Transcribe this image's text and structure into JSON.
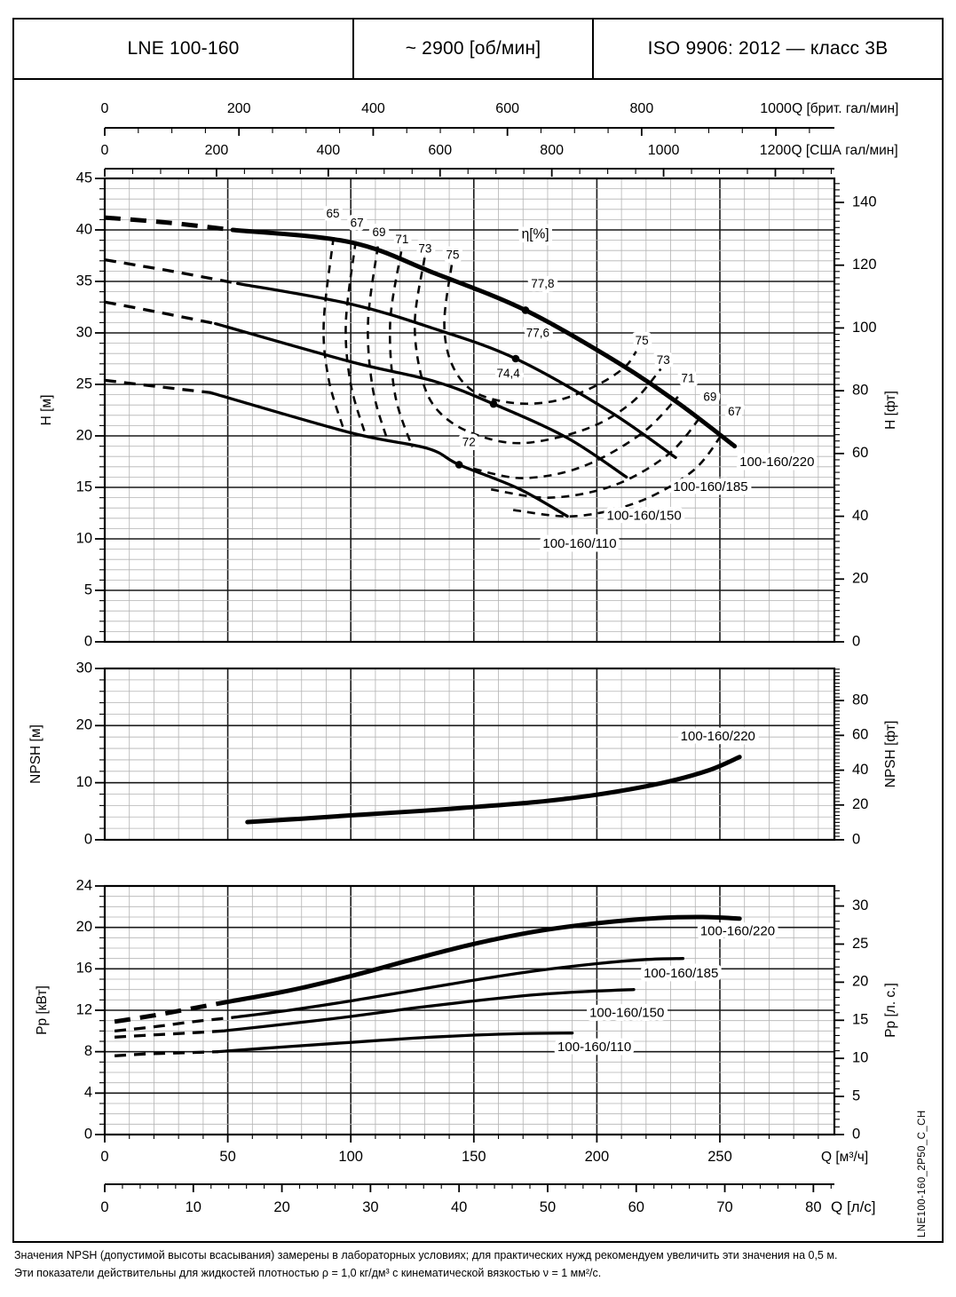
{
  "header": {
    "model": "LNE 100-160",
    "speed": "~ 2900 [об/мин]",
    "standard": "ISO 9906: 2012 — класс 3В"
  },
  "side_code": "LNE100-160_2P50_C_CH",
  "footer": {
    "line1": "Значения NPSH (допустимой высоты всасывания) замерены в лабораторных условиях; для практических нужд рекомендуем увеличить эти значения на 0,5 м.",
    "line2": "Эти показатели действительны для жидкостей плотностью ρ = 1,0 кг/дм³ с кинематической вязкостью ν = 1 мм²/с."
  },
  "chart_data": [
    {
      "id": "head",
      "type": "line",
      "title": "η[%]",
      "title_pos": [
        175,
        39.2
      ],
      "x": {
        "unit": "м³/ч",
        "min": 0,
        "max": 296,
        "minor": 10,
        "major": 50
      },
      "y_left": {
        "label": "H [м]",
        "min": 0,
        "max": 45,
        "minor": 1,
        "major": 5,
        "tick_labels": [
          0,
          5,
          10,
          15,
          20,
          25,
          30,
          35,
          40,
          45
        ]
      },
      "y_right": {
        "label": "H [фт]",
        "unit_to_left": 0.3048,
        "minor": 2,
        "tick_labels": [
          0,
          20,
          40,
          60,
          80,
          100,
          120,
          140
        ]
      },
      "axes_top": [
        {
          "label": "Q [брит. гал/мин]",
          "factor": 0.27276,
          "minor": 50,
          "ticks": [
            0,
            200,
            400,
            600,
            800,
            1000
          ]
        },
        {
          "label": "Q [США гал/мин]",
          "factor": 0.22712,
          "minor": 50,
          "ticks": [
            0,
            200,
            400,
            600,
            800,
            1000,
            1200
          ]
        }
      ],
      "series": [
        {
          "name": "100-160/220",
          "thick": true,
          "dashed_pts": [
            [
              0,
              41.2
            ],
            [
              26,
              40.7
            ],
            [
              52,
              40.0
            ]
          ],
          "solid_pts": [
            [
              52,
              40.0
            ],
            [
              100,
              38.8
            ],
            [
              134,
              35.8
            ],
            [
              171,
              32.2
            ],
            [
              208,
              27.2
            ],
            [
              233,
              23.2
            ],
            [
              256,
              19.0
            ]
          ],
          "bep": {
            "q": 171,
            "v": 32.2,
            "label": "77,8",
            "label_pos": [
              178,
              34.4
            ]
          },
          "label_pos": [
            258,
            17.4
          ]
        },
        {
          "name": "100-160/185",
          "dashed_pts": [
            [
              0,
              37.1
            ],
            [
              27,
              36.0
            ],
            [
              54,
              34.8
            ]
          ],
          "solid_pts": [
            [
              54,
              34.8
            ],
            [
              100,
              32.8
            ],
            [
              134,
              30.4
            ],
            [
              167,
              27.5
            ],
            [
              205,
              22.4
            ],
            [
              232,
              17.9
            ]
          ],
          "bep": {
            "q": 167,
            "v": 27.5,
            "label": "77,6",
            "label_pos": [
              176,
              29.6
            ]
          },
          "label_pos": [
            231,
            15.0
          ]
        },
        {
          "name": "100-160/150",
          "dashed_pts": [
            [
              0,
              33.0
            ],
            [
              22,
              32.0
            ],
            [
              45,
              30.9
            ]
          ],
          "solid_pts": [
            [
              45,
              30.9
            ],
            [
              100,
              27.2
            ],
            [
              134,
              25.3
            ],
            [
              158,
              23.1
            ],
            [
              188,
              19.8
            ],
            [
              212,
              16.0
            ]
          ],
          "bep": {
            "q": 158,
            "v": 23.1,
            "label": "74,4",
            "label_pos": [
              164,
              25.7
            ]
          },
          "label_pos": [
            204,
            12.2
          ]
        },
        {
          "name": "100-160/110",
          "dashed_pts": [
            [
              0,
              25.4
            ],
            [
              21,
              24.8
            ],
            [
              43,
              24.2
            ]
          ],
          "solid_pts": [
            [
              43,
              24.2
            ],
            [
              100,
              20.3
            ],
            [
              131,
              18.8
            ],
            [
              144,
              17.2
            ],
            [
              168,
              14.9
            ],
            [
              188,
              12.2
            ]
          ],
          "bep": {
            "q": 144,
            "v": 17.2,
            "label": "72",
            "label_pos": [
              148,
              19.0
            ]
          },
          "label_pos": [
            178,
            9.5
          ]
        }
      ],
      "contours": [
        {
          "eff": 65,
          "pts": [
            [
              93,
              39.3
            ],
            [
              89,
              31
            ],
            [
              91,
              25.5
            ],
            [
              97,
              20.7
            ]
          ]
        },
        {
          "eff": 67,
          "pts": [
            [
              102,
              38.9
            ],
            [
              98,
              31
            ],
            [
              100,
              25
            ],
            [
              106,
              20.1
            ]
          ]
        },
        {
          "eff": 69,
          "pts": [
            [
              111,
              38.4
            ],
            [
              107,
              31
            ],
            [
              109,
              24.5
            ],
            [
              115,
              19.5
            ]
          ]
        },
        {
          "eff": 71,
          "pts": [
            [
              120.5,
              37.9
            ],
            [
              116,
              31
            ],
            [
              118,
              24
            ],
            [
              125,
              18.9
            ]
          ]
        },
        {
          "eff": 73,
          "pts": [
            [
              130,
              37.3
            ],
            [
              126,
              31
            ],
            [
              129,
              25.5
            ],
            [
              136,
              22.3
            ],
            [
              150,
              20.2
            ],
            [
              170,
              19.3
            ],
            [
              196,
              20.7
            ],
            [
              214,
              23.2
            ],
            [
              226,
              26.5
            ]
          ]
        },
        {
          "eff": 75,
          "pts": [
            [
              141,
              36.6
            ],
            [
              138,
              31
            ],
            [
              141,
              27
            ],
            [
              150,
              24.3
            ],
            [
              166,
              23.2
            ],
            [
              183,
              23.4
            ],
            [
              199,
              24.8
            ],
            [
              211,
              26.6
            ],
            [
              216,
              28.2
            ]
          ]
        },
        {
          "eff": 71,
          "pts": [
            [
              150,
              16.8
            ],
            [
              170,
              15.9
            ],
            [
              194,
              17.0
            ],
            [
              218,
              20.2
            ],
            [
              233,
              23.8
            ]
          ]
        },
        {
          "eff": 69,
          "pts": [
            [
              157,
              14.8
            ],
            [
              181,
              14.0
            ],
            [
              207,
              15.2
            ],
            [
              229,
              18.2
            ],
            [
              242,
              21.8
            ]
          ]
        },
        {
          "eff": 67,
          "pts": [
            [
              166,
              12.8
            ],
            [
              191,
              12.2
            ],
            [
              217,
              13.6
            ],
            [
              239,
              16.6
            ],
            [
              251,
              20.2
            ]
          ]
        }
      ],
      "annotations_top": [
        {
          "text": "65",
          "q": 92.7,
          "v": 41.2
        },
        {
          "text": "67",
          "q": 102.5,
          "v": 40.3
        },
        {
          "text": "69",
          "q": 111.5,
          "v": 39.4
        },
        {
          "text": "71",
          "q": 120.8,
          "v": 38.7
        },
        {
          "text": "73",
          "q": 130.2,
          "v": 37.8
        },
        {
          "text": "75",
          "q": 141.4,
          "v": 37.2
        }
      ],
      "annotations_right": [
        {
          "text": "75",
          "q": 218.3,
          "v": 28.9
        },
        {
          "text": "73",
          "q": 227,
          "v": 27.0
        },
        {
          "text": "71",
          "q": 237,
          "v": 25.2
        },
        {
          "text": "69",
          "q": 246,
          "v": 23.4
        },
        {
          "text": "67",
          "q": 256,
          "v": 22.0
        }
      ]
    },
    {
      "id": "npsh",
      "type": "line",
      "x": {
        "unit": "м³/ч",
        "min": 0,
        "max": 296,
        "minor": 10,
        "major": 50
      },
      "y_left": {
        "label": "NPSH [м]",
        "min": 0,
        "max": 30,
        "minor": 2,
        "major": 10,
        "tick_labels": [
          0,
          10,
          20,
          30
        ]
      },
      "y_right": {
        "label": "NPSH [фт]",
        "unit_to_left": 0.3048,
        "minor": 2,
        "tick_labels": [
          0,
          20,
          40,
          60,
          80
        ]
      },
      "series": [
        {
          "name": "100-160/220",
          "thick": true,
          "solid_pts": [
            [
              58,
              3.1
            ],
            [
              80,
              3.7
            ],
            [
              104,
              4.4
            ],
            [
              130,
              5.1
            ],
            [
              152,
              5.8
            ],
            [
              175,
              6.6
            ],
            [
              200,
              7.9
            ],
            [
              226,
              9.9
            ],
            [
              245,
              12.1
            ],
            [
              258,
              14.5
            ]
          ],
          "label_pos": [
            234,
            18.0
          ]
        }
      ]
    },
    {
      "id": "power",
      "type": "line",
      "x": {
        "unit": "м³/ч",
        "min": 0,
        "max": 296,
        "minor": 10,
        "major": 50
      },
      "y_left": {
        "label": "Pp [кВт]",
        "min": 0,
        "max": 24,
        "minor": 1,
        "major": 4,
        "tick_labels": [
          0,
          4,
          8,
          12,
          16,
          20,
          24
        ]
      },
      "y_right": {
        "label": "Pp [л. с.]",
        "unit_to_left": 0.7355,
        "minor": 1,
        "tick_labels": [
          0,
          5,
          10,
          15,
          20,
          25,
          30
        ]
      },
      "axes_bottom": [
        {
          "label": "Q [м³/ч]",
          "factor": 1,
          "minor": 10,
          "ticks": [
            0,
            50,
            100,
            150,
            200,
            250
          ]
        },
        {
          "label": "Q [л/с]",
          "factor": 3.6,
          "minor": 2,
          "ticks": [
            0,
            10,
            20,
            30,
            40,
            50,
            60,
            70,
            80
          ]
        }
      ],
      "series": [
        {
          "name": "100-160/220",
          "thick": true,
          "dashed_pts": [
            [
              4,
              10.9
            ],
            [
              20,
              11.5
            ],
            [
              36,
              12.2
            ],
            [
              52,
              12.9
            ]
          ],
          "solid_pts": [
            [
              52,
              12.9
            ],
            [
              75,
              13.9
            ],
            [
              100,
              15.3
            ],
            [
              125,
              16.9
            ],
            [
              150,
              18.4
            ],
            [
              175,
              19.6
            ],
            [
              200,
              20.4
            ],
            [
              225,
              20.9
            ],
            [
              243,
              21.0
            ],
            [
              258,
              20.85
            ]
          ],
          "label_pos": [
            242,
            19.6
          ]
        },
        {
          "name": "100-160/185",
          "dashed_pts": [
            [
              4,
              10.0
            ],
            [
              20,
              10.4
            ],
            [
              36,
              10.9
            ],
            [
              52,
              11.3
            ]
          ],
          "solid_pts": [
            [
              52,
              11.3
            ],
            [
              75,
              12.0
            ],
            [
              100,
              12.9
            ],
            [
              125,
              13.9
            ],
            [
              150,
              14.9
            ],
            [
              175,
              15.8
            ],
            [
              200,
              16.5
            ],
            [
              220,
              16.9
            ],
            [
              235,
              17.0
            ]
          ],
          "label_pos": [
            219,
            15.5
          ]
        },
        {
          "name": "100-160/150",
          "dashed_pts": [
            [
              4,
              9.4
            ],
            [
              18,
              9.6
            ],
            [
              34,
              9.8
            ],
            [
              48,
              10.0
            ]
          ],
          "solid_pts": [
            [
              48,
              10.0
            ],
            [
              75,
              10.7
            ],
            [
              100,
              11.4
            ],
            [
              125,
              12.2
            ],
            [
              150,
              12.9
            ],
            [
              175,
              13.5
            ],
            [
              195,
              13.8
            ],
            [
              215,
              14.0
            ]
          ],
          "label_pos": [
            197,
            11.7
          ]
        },
        {
          "name": "100-160/110",
          "dashed_pts": [
            [
              4,
              7.6
            ],
            [
              18,
              7.8
            ],
            [
              33,
              7.9
            ],
            [
              46,
              8.0
            ]
          ],
          "solid_pts": [
            [
              46,
              8.0
            ],
            [
              75,
              8.5
            ],
            [
              100,
              8.9
            ],
            [
              125,
              9.3
            ],
            [
              150,
              9.6
            ],
            [
              170,
              9.75
            ],
            [
              190,
              9.8
            ]
          ],
          "label_pos": [
            184,
            8.4
          ]
        }
      ]
    }
  ]
}
